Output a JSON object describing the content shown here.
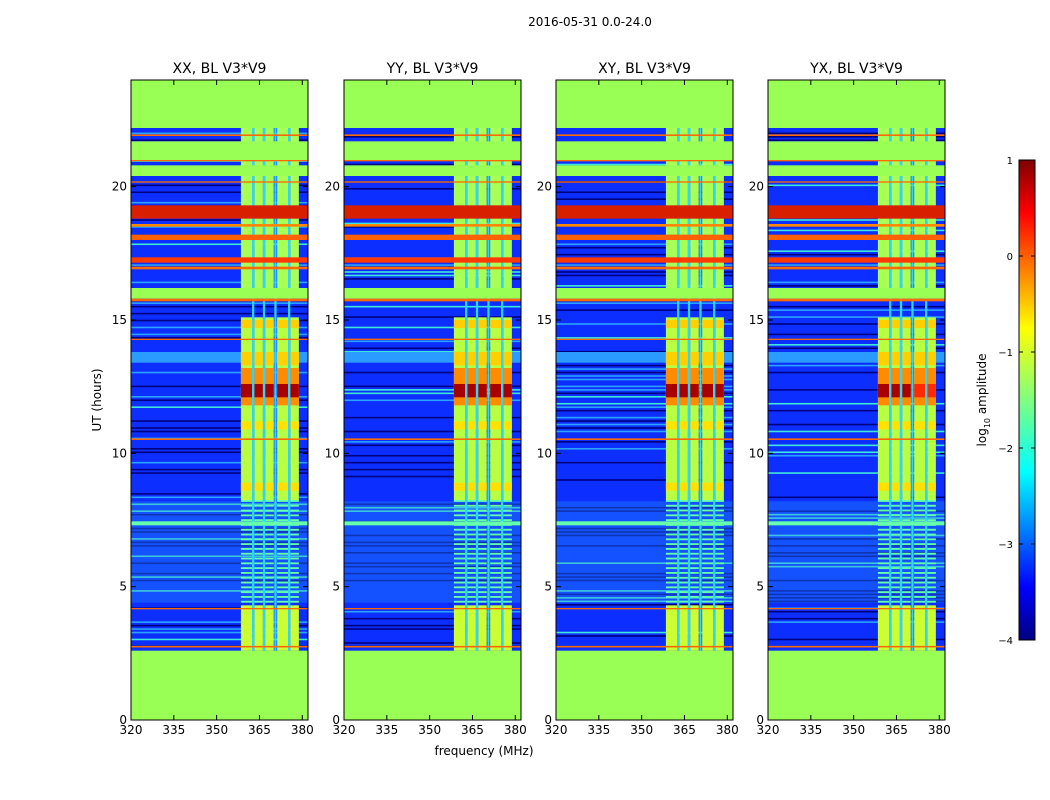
{
  "chart_data": {
    "type": "heatmap",
    "suptitle": "2016-05-31 0.0-24.0",
    "panels": [
      {
        "title": "XX, BL V3*V9"
      },
      {
        "title": "YY, BL V3*V9"
      },
      {
        "title": "XY, BL V3*V9"
      },
      {
        "title": "YX, BL V3*V9"
      }
    ],
    "xlabel": "frequency (MHz)",
    "ylabel": "UT (hours)",
    "xlim": [
      320,
      382
    ],
    "ylim": [
      0,
      24
    ],
    "xticks": [
      "320",
      "335",
      "350",
      "365",
      "380"
    ],
    "yticks": [
      "0",
      "5",
      "10",
      "15",
      "20"
    ],
    "xtick_values": [
      320,
      335,
      350,
      365,
      380
    ],
    "ytick_values": [
      0,
      5,
      10,
      15,
      20
    ],
    "colorbar": {
      "label_prefix": "log",
      "label_sub": "10",
      "label_suffix": " amplitude",
      "range": [
        -4,
        1
      ],
      "ticks": [
        "1",
        "0",
        "−1",
        "−2",
        "−3",
        "−4"
      ],
      "tick_values": [
        1,
        0,
        -1,
        -2,
        -3,
        -4
      ],
      "colormap": "jet"
    },
    "flagged_ut_ranges": [
      [
        0,
        2.6
      ],
      [
        22.2,
        24
      ],
      [
        15.8,
        16.2
      ]
    ],
    "rfi_channel_band_mhz": [
      360,
      380
    ],
    "high_amplitude_ut_range": [
      11.8,
      13.2
    ]
  }
}
